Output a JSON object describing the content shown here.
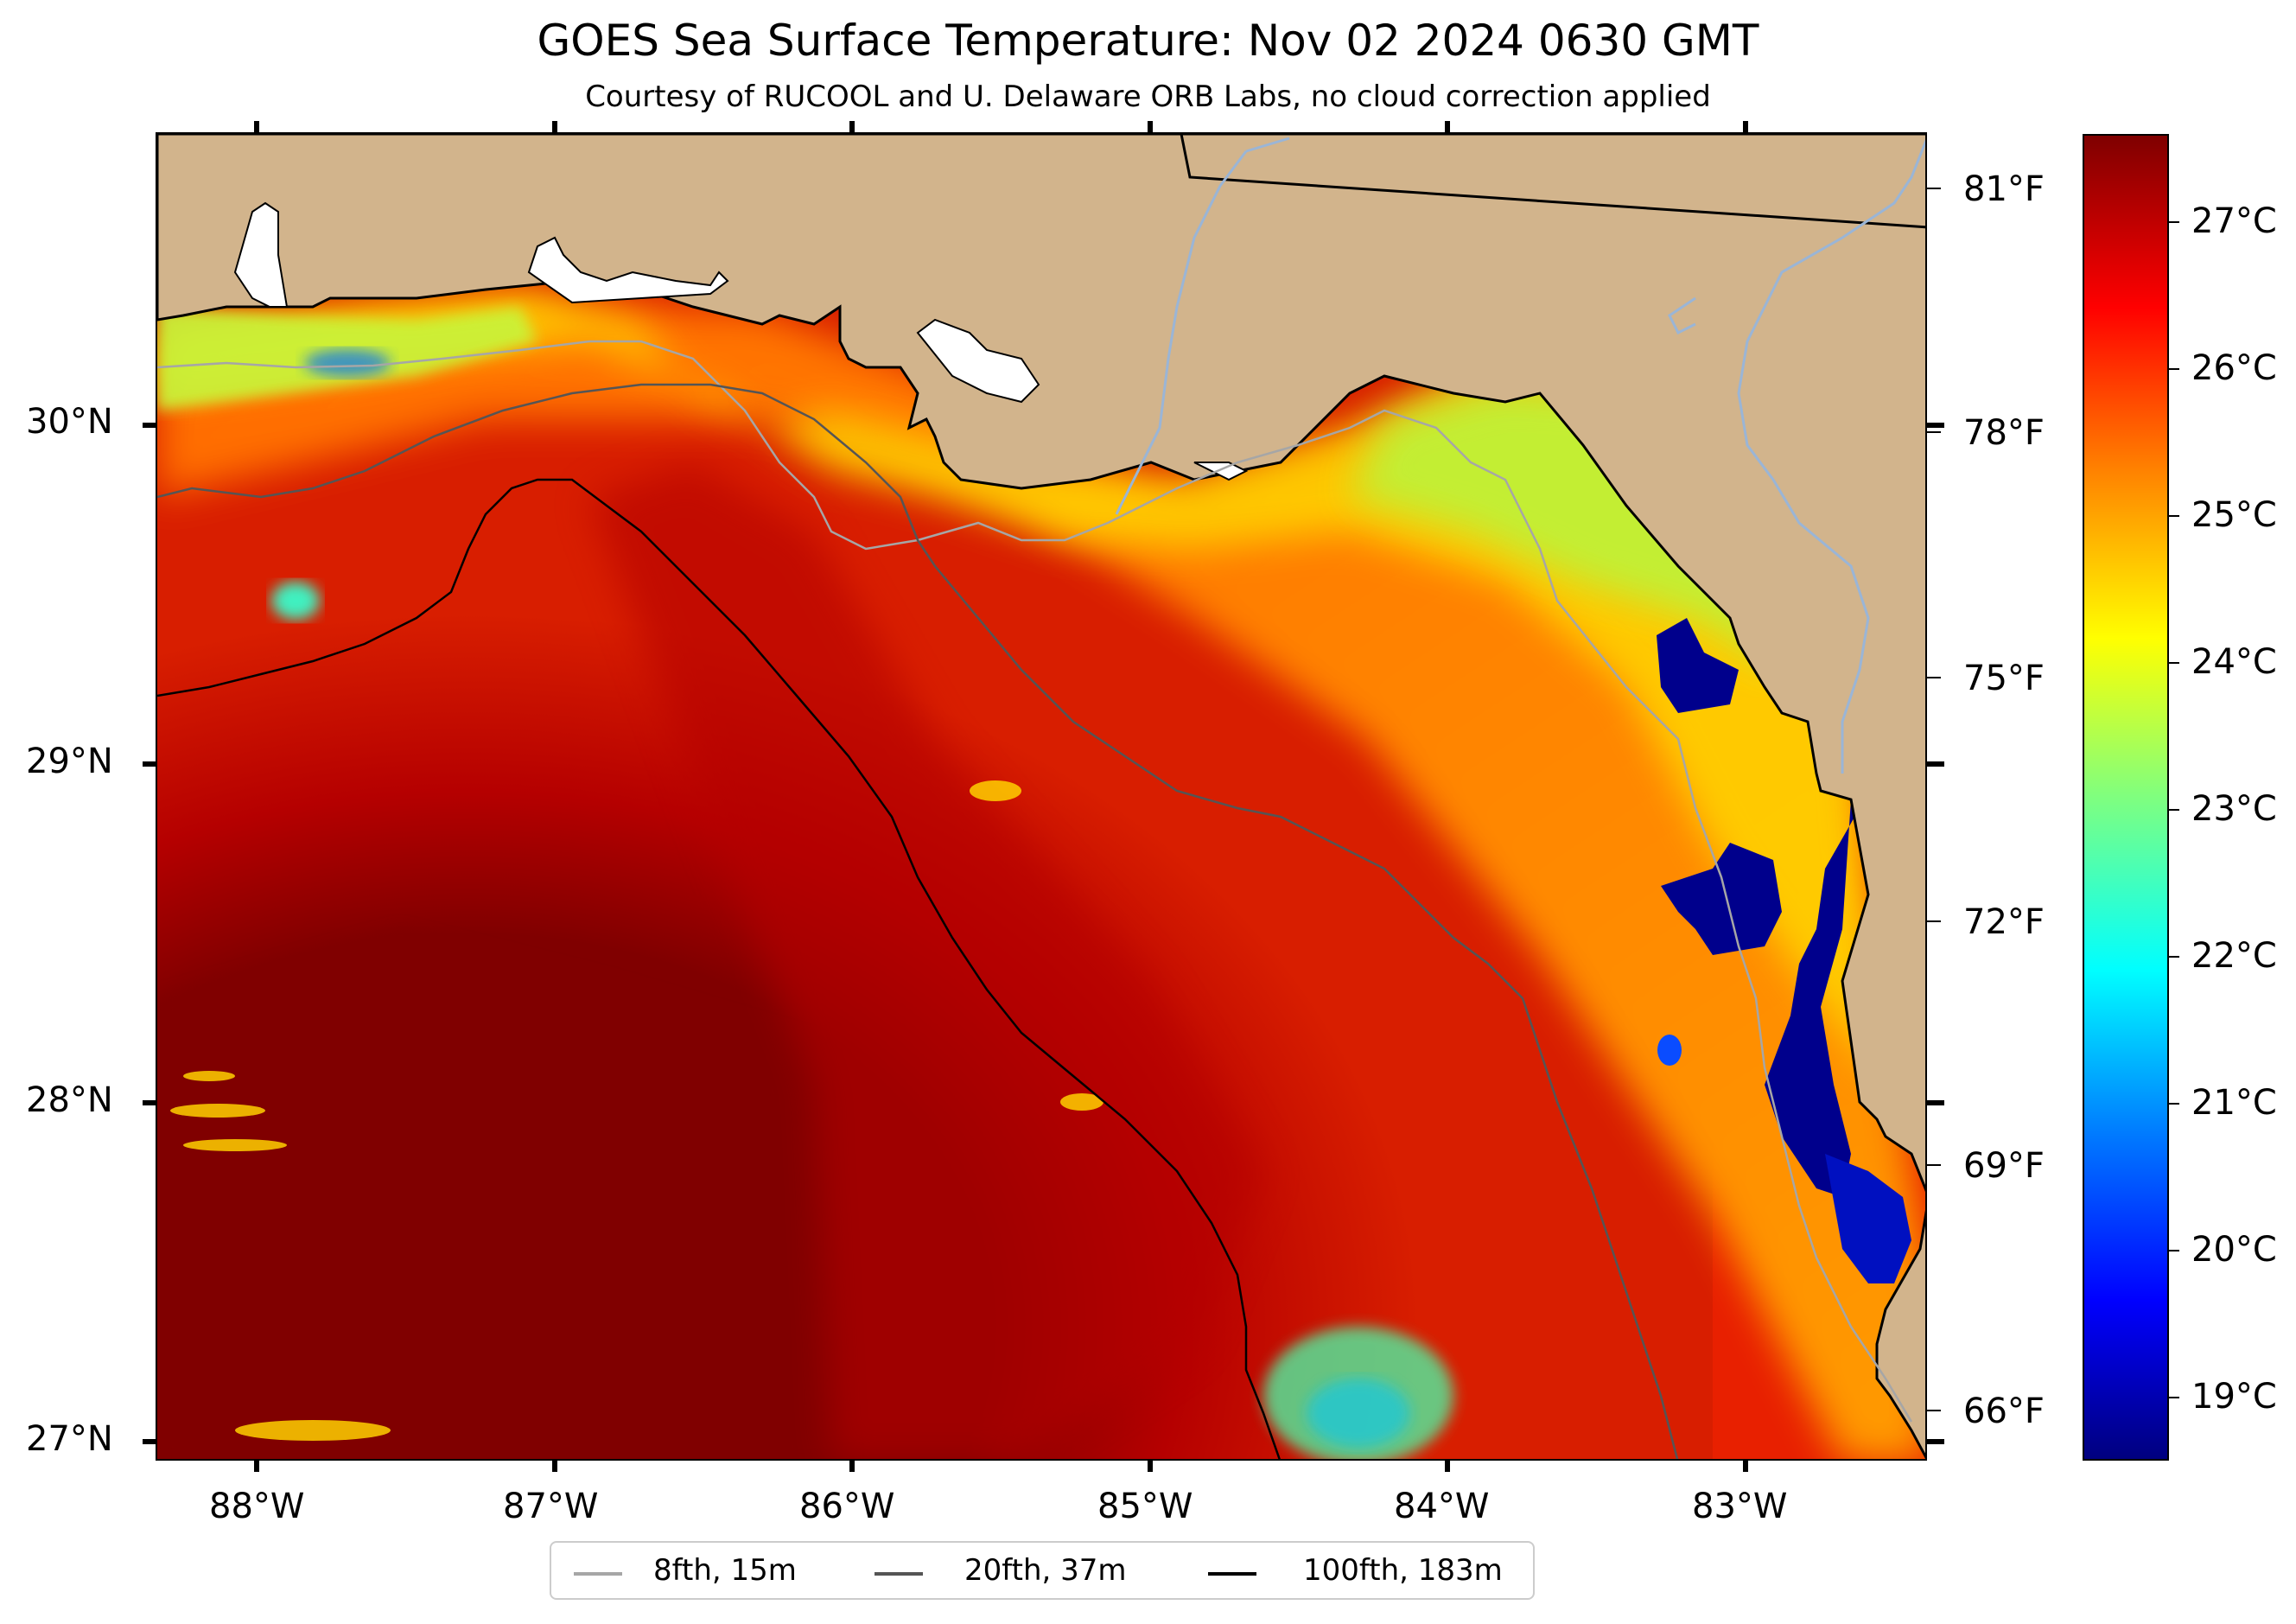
{
  "title": "GOES Sea Surface Temperature: Nov 02 2024 0630 GMT",
  "subtitle": "Courtesy of RUCOOL and U. Delaware ORB Labs, no cloud correction applied",
  "map": {
    "lon_range": [
      -88.35,
      -82.4
    ],
    "lat_range": [
      26.93,
      30.85
    ],
    "lat_ticks": [
      "30°N",
      "29°N",
      "28°N",
      "27°N"
    ],
    "lon_ticks": [
      "88°W",
      "87°W",
      "86°W",
      "85°W",
      "84°W",
      "83°W"
    ],
    "degf_ticks": [
      "81°F",
      "78°F",
      "75°F",
      "72°F",
      "69°F",
      "66°F"
    ],
    "colors": {
      "land": "#d2b48c",
      "coast": "#000000",
      "river": "#9ab5d6"
    }
  },
  "colorbar": {
    "range_c": [
      18.7,
      27.6
    ],
    "labels": [
      "27°C",
      "26°C",
      "25°C",
      "24°C",
      "23°C",
      "22°C",
      "21°C",
      "20°C",
      "19°C"
    ],
    "colormap": "jet"
  },
  "legend": {
    "items": [
      {
        "label": "8fth, 15m",
        "color": "#a6a6a6"
      },
      {
        "label": "20fth, 37m",
        "color": "#555555"
      },
      {
        "label": "100fth, 183m",
        "color": "#000000"
      }
    ]
  }
}
